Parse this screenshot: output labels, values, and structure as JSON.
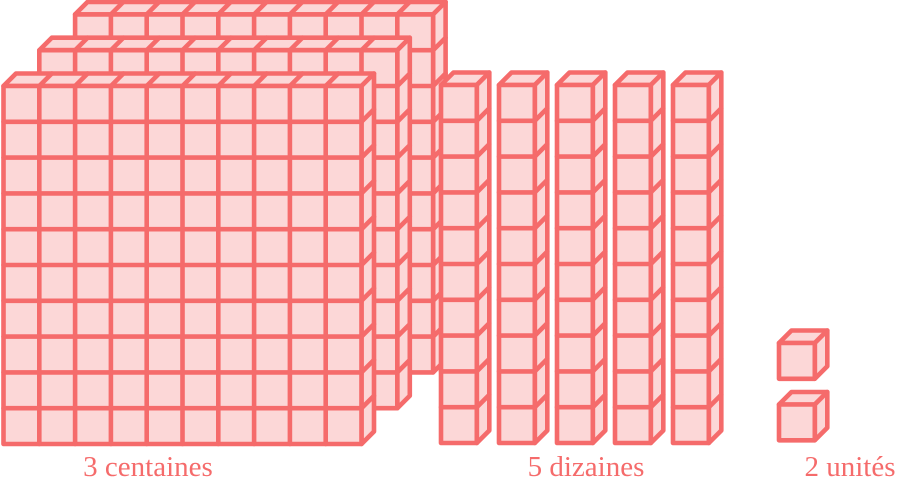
{
  "figure": {
    "background_color": "#ffffff",
    "block_fill_color": "#fcd7d7",
    "block_stroke_color": "#f56b6b",
    "label_color": "#f56b6b",
    "groups": [
      {
        "id": "centaines",
        "block_type": "flat-100",
        "grid": "10x10",
        "count": 3,
        "label": "3 centaines"
      },
      {
        "id": "dizaines",
        "block_type": "rod-10",
        "grid": "10x1",
        "count": 5,
        "label": "5 dizaines"
      },
      {
        "id": "unites",
        "block_type": "cube-1",
        "grid": "1x1",
        "count": 2,
        "label": "2 unités"
      }
    ]
  }
}
